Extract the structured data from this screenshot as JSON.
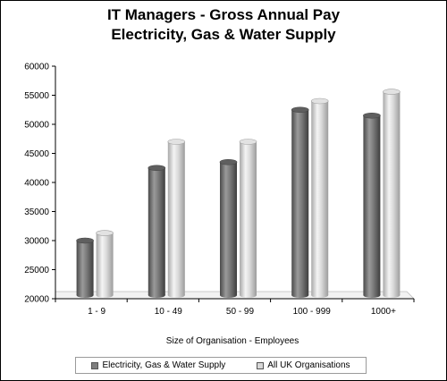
{
  "chart_data": {
    "type": "bar",
    "title": "IT Managers - Gross Annual Pay",
    "subtitle": "Electricity, Gas & Water Supply",
    "xlabel": "Size of Organisation - Employees",
    "ylabel": "",
    "categories": [
      "1 - 9",
      "10 - 49",
      "50 - 99",
      "100 - 999",
      "1000+"
    ],
    "series": [
      {
        "name": "Electricity, Gas & Water Supply",
        "values": [
          30000,
          42500,
          43500,
          52500,
          51500
        ],
        "color": "#7f7f7f"
      },
      {
        "name": "All UK Organisations",
        "values": [
          31300,
          47000,
          47000,
          54000,
          55600
        ],
        "color": "#d8d8d8"
      }
    ],
    "ylim": [
      20000,
      60000
    ],
    "yticks": [
      "20000",
      "25000",
      "30000",
      "35000",
      "40000",
      "45000",
      "50000",
      "55000",
      "60000"
    ],
    "grid": false,
    "legend_position": "bottom",
    "style": "3d-cylinder"
  }
}
